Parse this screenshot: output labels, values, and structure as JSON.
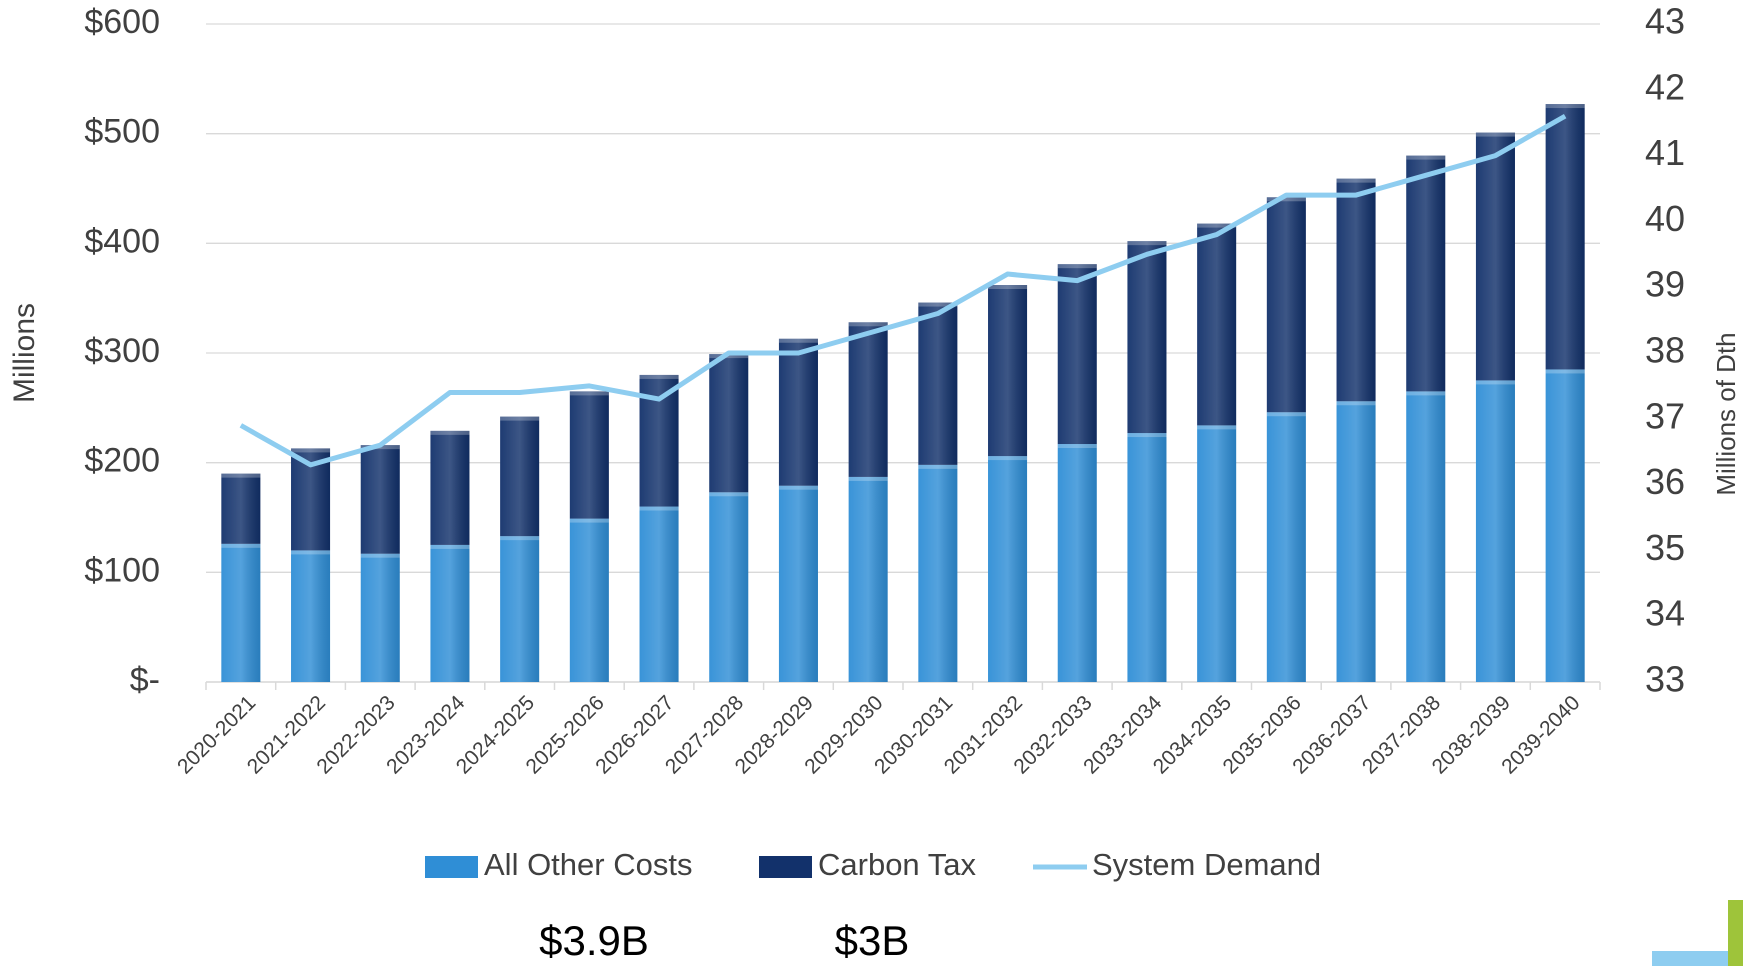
{
  "chart_data": {
    "type": "bar",
    "stacked": true,
    "ylabel": "Millions",
    "y2label": "Millions of Dth",
    "categories": [
      "2020-2021",
      "2021-2022",
      "2022-2023",
      "2023-2024",
      "2024-2025",
      "2025-2026",
      "2026-2027",
      "2027-2028",
      "2028-2029",
      "2029-2030",
      "2030-2031",
      "2031-2032",
      "2032-2033",
      "2033-2034",
      "2034-2035",
      "2035-2036",
      "2036-2037",
      "2037-2038",
      "2038-2039",
      "2039-2040"
    ],
    "series": [
      {
        "name": "All Other Costs",
        "type": "bar",
        "color": "#2f8ed6",
        "values": [
          126,
          120,
          117,
          125,
          133,
          149,
          160,
          173,
          179,
          187,
          198,
          206,
          217,
          227,
          234,
          246,
          256,
          265,
          275,
          285
        ]
      },
      {
        "name": "Carbon Tax",
        "type": "bar",
        "color": "#12316b",
        "values": [
          64,
          93,
          99,
          104,
          109,
          116,
          120,
          126,
          134,
          141,
          148,
          156,
          164,
          175,
          184,
          196,
          203,
          215,
          226,
          242
        ]
      },
      {
        "name": "System Demand",
        "type": "line",
        "axis": "y2",
        "color": "#8ecdf0",
        "values": [
          36.9,
          36.3,
          36.6,
          37.4,
          37.4,
          37.5,
          37.3,
          38.0,
          38.0,
          38.3,
          38.6,
          39.2,
          39.1,
          39.5,
          39.8,
          40.4,
          40.4,
          40.7,
          41.0,
          41.6
        ]
      }
    ],
    "ylim": [
      0,
      600
    ],
    "yticks": [
      {
        "value": 0,
        "label": "$-"
      },
      {
        "value": 100,
        "label": "$100"
      },
      {
        "value": 200,
        "label": "$200"
      },
      {
        "value": 300,
        "label": "$300"
      },
      {
        "value": 400,
        "label": "$400"
      },
      {
        "value": 500,
        "label": "$500"
      },
      {
        "value": 600,
        "label": "$600"
      }
    ],
    "y2lim": [
      33,
      43
    ],
    "y2ticks": [
      33,
      34,
      35,
      36,
      37,
      38,
      39,
      40,
      41,
      42,
      43
    ],
    "grid": true,
    "legend": "bottom",
    "annotations": [
      "$3.9B",
      "$3B"
    ]
  }
}
